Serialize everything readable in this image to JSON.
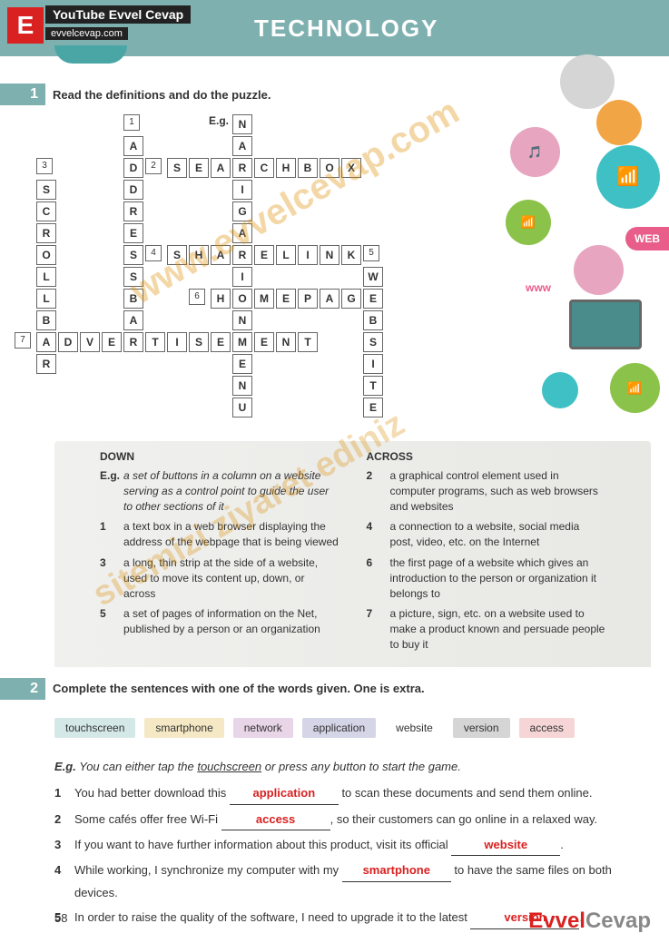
{
  "header": {
    "title": "TECHNOLOGY",
    "badge": "E",
    "youtube": "YouTube Evvel Cevap",
    "site": "evvelcevap.com"
  },
  "section1": {
    "num": "1",
    "instruction": "Read the definitions and do the puzzle.",
    "eg_label": "E.g."
  },
  "crossword": {
    "words": {
      "navigationmenu": "NAVIGATIONMENU",
      "searchbox": "SEARCHBOX",
      "addressbar": "ADDRESSBAR",
      "scrollbar": "SCROLLBAR",
      "sharelink": "SHARELINK",
      "homepage": "HOMEPAGE",
      "website": "WEBSITE",
      "advertisement": "ADVERTISEMENT"
    }
  },
  "infographic": {
    "web_label": "WEB",
    "www_label": "www",
    "colors": {
      "pink": "#e8a5c0",
      "teal": "#3fc0c5",
      "orange": "#f2a544",
      "green": "#8bc34a",
      "gray": "#d5d5d5",
      "darkteal": "#4a8b8b"
    }
  },
  "clues": {
    "down_title": "DOWN",
    "across_title": "ACROSS",
    "down": [
      {
        "num": "E.g.",
        "text": "a set of buttons in a column on a website serving as a control point to guide the user to other sections of it",
        "eg": true
      },
      {
        "num": "1",
        "text": "a text box in a web browser displaying the address of the webpage that is being viewed"
      },
      {
        "num": "3",
        "text": "a long, thin strip at the side of a website, used to move its content up, down, or across"
      },
      {
        "num": "5",
        "text": "a set of pages of information on the Net, published by a person or an organization"
      }
    ],
    "across": [
      {
        "num": "2",
        "text": "a graphical control element used in computer programs, such as web browsers and websites"
      },
      {
        "num": "4",
        "text": "a connection to a website, social media post, video, etc. on the Internet"
      },
      {
        "num": "6",
        "text": "the first page of a website which gives an introduction to the person or organization it belongs to"
      },
      {
        "num": "7",
        "text": "a picture, sign, etc. on a website used to make a product known and persuade people to buy it"
      }
    ]
  },
  "section2": {
    "num": "2",
    "instruction": "Complete the sentences with one of the words given. One is extra.",
    "words": [
      {
        "text": "touchscreen",
        "bg": "#d5e8e8"
      },
      {
        "text": "smartphone",
        "bg": "#f5e8c5"
      },
      {
        "text": "network",
        "bg": "#e8d5e8"
      },
      {
        "text": "application",
        "bg": "#d5d5e8"
      },
      {
        "text": "website",
        "bg": "#ffffff"
      },
      {
        "text": "version",
        "bg": "#d5d5d5"
      },
      {
        "text": "access",
        "bg": "#f5d5d5"
      }
    ],
    "eg": "You can either tap the touchscreen or press any button to start the game.",
    "eg_label": "E.g.",
    "eg_underline": "touchscreen",
    "items": [
      {
        "num": "1",
        "pre": "You had better download this ",
        "answer": "application",
        "post": " to scan these documents and send them online."
      },
      {
        "num": "2",
        "pre": "Some cafés offer free Wi-Fi ",
        "answer": "access",
        "post": ", so their customers can go online in a relaxed way."
      },
      {
        "num": "3",
        "pre": "If you want to have further information about this product, visit its official ",
        "answer": "website",
        "post": "."
      },
      {
        "num": "4",
        "pre": "While working, I synchronize my computer with my ",
        "answer": "smartphone",
        "post": " to have the same files on both devices."
      },
      {
        "num": "5",
        "pre": "In order to raise the quality of the software, I need to upgrade it to the latest ",
        "answer": "version",
        "post": "."
      }
    ]
  },
  "page_number": "58",
  "footer_logo": {
    "part1": "Evvel",
    "part2": "Cevap"
  },
  "watermark": "www.evvelcevap.com",
  "watermark2": "sitemizi ziyaret ediniz"
}
